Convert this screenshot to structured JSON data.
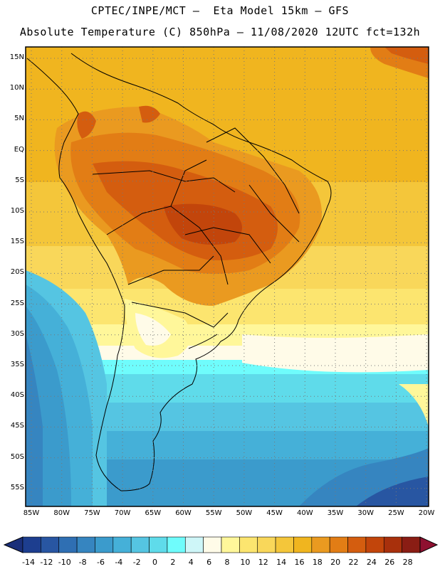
{
  "header": {
    "title_line1": "CPTEC/INPE/MCT –  Eta Model 15km – GFS",
    "title_line2": "Absolute Temperature (C) 850hPa – 11/08/2020 12UTC fct=132h"
  },
  "axes": {
    "lat_labels": [
      "15N",
      "10N",
      "5N",
      "EQ",
      "5S",
      "10S",
      "15S",
      "20S",
      "25S",
      "30S",
      "35S",
      "40S",
      "45S",
      "50S",
      "55S"
    ],
    "lon_labels": [
      "85W",
      "80W",
      "75W",
      "70W",
      "65W",
      "60W",
      "55W",
      "50W",
      "45W",
      "40W",
      "35W",
      "30W",
      "25W",
      "20W"
    ]
  },
  "colorbar": {
    "labels": [
      "-14",
      "-12",
      "-10",
      "-8",
      "-6",
      "-4",
      "-2",
      "0",
      "2",
      "4",
      "6",
      "8",
      "10",
      "12",
      "14",
      "16",
      "18",
      "20",
      "22",
      "24",
      "26",
      "28"
    ],
    "colors": [
      "#1d3e8f",
      "#2856a2",
      "#2f6fb3",
      "#3685c0",
      "#3b9bcc",
      "#45b0d8",
      "#55c5e2",
      "#5fdbea",
      "#6ffcfc",
      "#cef6f8",
      "#fffbe8",
      "#fff79a",
      "#fce56f",
      "#f9d75a",
      "#f4c63a",
      "#f0b51f",
      "#ea9a20",
      "#e27d15",
      "#d45d0f",
      "#c2450b",
      "#a8300c",
      "#8a1d14"
    ],
    "under_color": "#1a2f7a",
    "over_color": "#8e1030"
  }
}
